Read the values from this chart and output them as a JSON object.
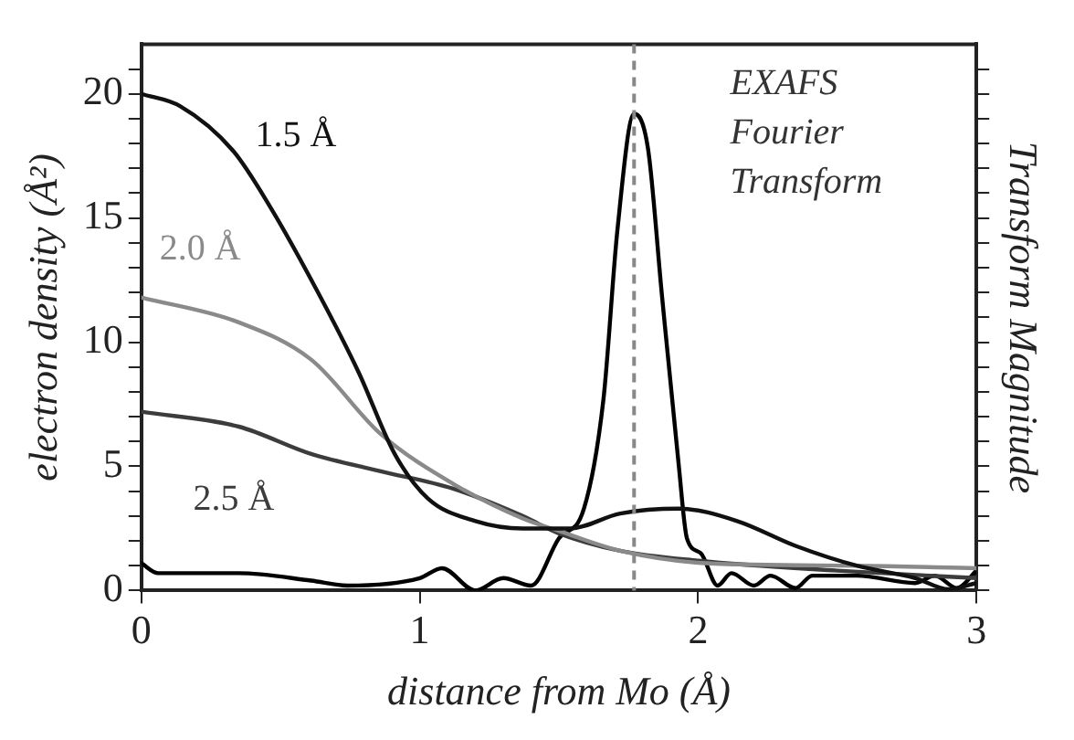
{
  "chart_data": {
    "type": "line",
    "xlabel": "distance from Mo (Å)",
    "ylabel": "electron density (Å²)",
    "y2label": "Transform Magnitude",
    "xlim": [
      0,
      3
    ],
    "xticks": [
      0,
      1,
      2,
      3
    ],
    "ylim": [
      0,
      22
    ],
    "yticks": [
      0,
      {
        "value": 1,
        "label": null
      },
      {
        "value": 2,
        "label": null
      },
      {
        "value": 3,
        "label": null
      },
      {
        "value": 4,
        "label": null
      },
      5,
      {
        "value": 6,
        "label": null
      },
      {
        "value": 7,
        "label": null
      },
      {
        "value": 8,
        "label": null
      },
      {
        "value": 9,
        "label": null
      },
      10,
      {
        "value": 11,
        "label": null
      },
      {
        "value": 12,
        "label": null
      },
      {
        "value": 13,
        "label": null
      },
      {
        "value": 14,
        "label": null
      },
      15,
      {
        "value": 16,
        "label": null
      },
      {
        "value": 17,
        "label": null
      },
      {
        "value": 18,
        "label": null
      },
      {
        "value": 19,
        "label": null
      },
      20,
      {
        "value": 21,
        "label": null
      }
    ],
    "grid": false,
    "legend": false,
    "marker": "none",
    "line_style": "solid",
    "series": [
      {
        "name": "1.5 Å",
        "color": "#111111",
        "x": [
          0,
          0.14,
          0.33,
          0.46,
          0.63,
          0.78,
          0.91,
          1.03,
          1.2,
          1.37,
          1.54,
          1.72,
          1.93,
          2.14,
          2.35,
          2.57,
          2.78,
          2.9,
          3
        ],
        "values": [
          20,
          19.5,
          17.7,
          15.5,
          12.1,
          8.8,
          5.5,
          3.7,
          2.8,
          2.5,
          2.5,
          3.1,
          3.3,
          2.8,
          1.8,
          1.0,
          0.5,
          0.05,
          0.3
        ]
      },
      {
        "name": "2.0 Å",
        "color": "#8a8a8a",
        "x": [
          0,
          0.35,
          0.61,
          0.86,
          1.12,
          1.37,
          1.5,
          1.72,
          2.03,
          2.57,
          3
        ],
        "values": [
          11.8,
          10.8,
          9.3,
          6.3,
          4.3,
          2.9,
          2.4,
          1.6,
          1.1,
          1.0,
          0.9
        ]
      },
      {
        "name": "2.5 Å",
        "color": "#3c3c3c",
        "x": [
          0,
          0.35,
          0.61,
          0.86,
          1.12,
          1.37,
          1.5,
          1.72,
          2.0,
          2.5,
          3
        ],
        "values": [
          7.2,
          6.6,
          5.5,
          4.8,
          4.1,
          3.0,
          2.3,
          1.6,
          1.2,
          0.8,
          0.5
        ]
      },
      {
        "color": "#000000",
        "x": [
          0,
          0.06,
          0.35,
          0.61,
          0.74,
          1.0,
          1.08,
          1.2,
          1.3,
          1.4,
          1.5,
          1.59,
          1.66,
          1.71,
          1.77,
          1.82,
          1.87,
          1.93,
          1.96,
          2.01,
          2.07,
          2.12,
          2.2,
          2.26,
          2.35,
          2.41,
          2.57,
          2.78,
          2.85,
          2.93,
          3
        ],
        "values": [
          1.1,
          0.7,
          0.7,
          0.4,
          0.2,
          0.5,
          0.9,
          0.0,
          0.5,
          0.2,
          2.1,
          3.3,
          7.7,
          14.5,
          19.2,
          17.8,
          11.9,
          5.1,
          2.1,
          1.5,
          0.2,
          0.7,
          0.2,
          0.6,
          0.1,
          0.6,
          0.6,
          0.3,
          0.6,
          0.1,
          0.8
        ]
      }
    ],
    "ref_lines": [
      {
        "axis": "x",
        "value": 1.77,
        "color": "#888888",
        "line_style": "dashed"
      }
    ],
    "annotations": [
      "EXAFS Fourier Transform"
    ]
  }
}
